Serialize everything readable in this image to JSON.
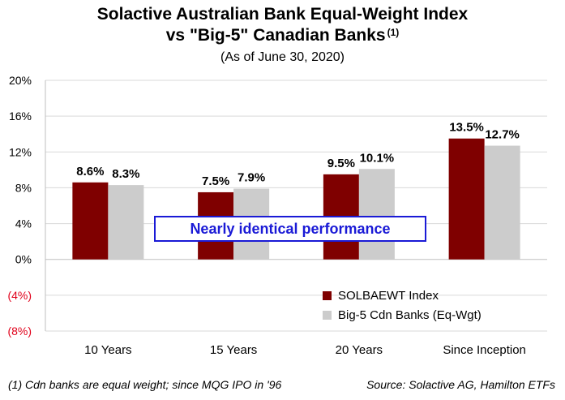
{
  "header": {
    "title_line1": "Solactive Australian Bank Equal-Weight Index",
    "title_line2": "vs \"Big-5\" Canadian Banks",
    "title_sup": "(1)",
    "subtitle": "(As of June 30, 2020)"
  },
  "annotation": "Nearly identical performance",
  "footnotes": {
    "left": "(1) Cdn banks are equal weight; since MQG IPO in '96",
    "right": "Source: Solactive AG, Hamilton ETFs"
  },
  "colors": {
    "series1": "#7f0000",
    "series2": "#cccccc",
    "negative_tick": "#e0001a",
    "annotation": "#1a1ad6",
    "grid": "#d9d9d9"
  },
  "chart_data": {
    "type": "bar",
    "categories": [
      "10 Years",
      "15 Years",
      "20 Years",
      "Since Inception"
    ],
    "series": [
      {
        "name": "SOLBAEWT Index",
        "values": [
          8.6,
          7.5,
          9.5,
          13.5
        ],
        "labels": [
          "8.6%",
          "7.5%",
          "9.5%",
          "13.5%"
        ]
      },
      {
        "name": "Big-5 Cdn Banks (Eq-Wgt)",
        "values": [
          8.3,
          7.9,
          10.1,
          12.7
        ],
        "labels": [
          "8.3%",
          "7.9%",
          "10.1%",
          "12.7%"
        ]
      }
    ],
    "ylim": [
      -8,
      20
    ],
    "yticks": [
      20,
      16,
      12,
      8,
      4,
      0,
      -4,
      -8
    ],
    "ytick_labels": [
      "20%",
      "16%",
      "12%",
      "8%",
      "4%",
      "0%",
      "(4%)",
      "(8%)"
    ],
    "grid": true,
    "legend_position": "bottom-right"
  }
}
